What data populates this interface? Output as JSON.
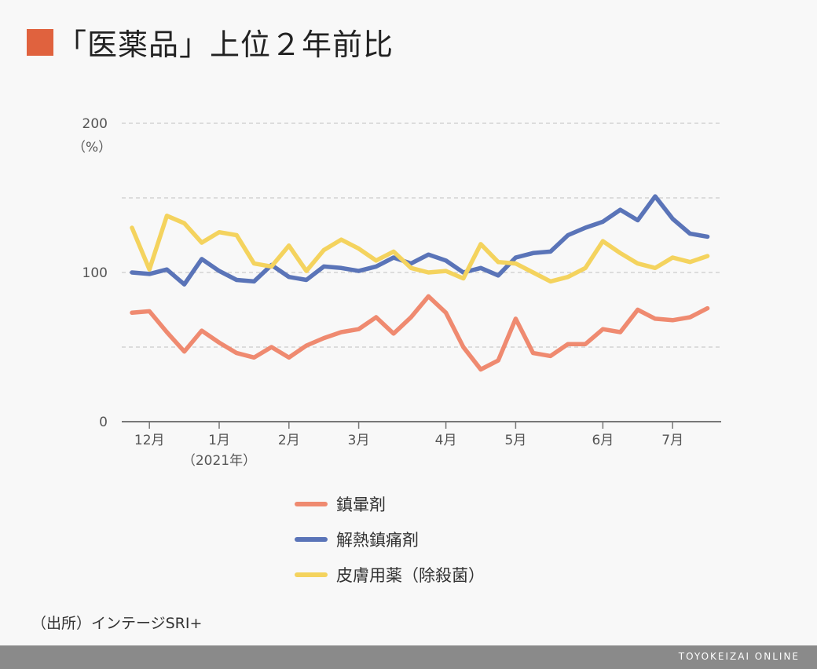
{
  "title": "「医薬品」上位２年前比",
  "colors": {
    "accent": "#e0623e",
    "sedative": "#ef8a70",
    "antipyretic": "#5a74b8",
    "dermatological": "#f4d35e",
    "grid": "#cccccc",
    "axis": "#777777"
  },
  "chart_data": {
    "type": "line",
    "y_unit_label": "（%）",
    "ylim": [
      0,
      200
    ],
    "yticks": [
      0,
      100,
      200
    ],
    "grid": true,
    "x_tick_labels": [
      {
        "label": "12月",
        "week": 1
      },
      {
        "label": "1月",
        "week": 5
      },
      {
        "label": "2月",
        "week": 9
      },
      {
        "label": "3月",
        "week": 13
      },
      {
        "label": "4月",
        "week": 18
      },
      {
        "label": "5月",
        "week": 22
      },
      {
        "label": "6月",
        "week": 27
      },
      {
        "label": "7月",
        "week": 31
      }
    ],
    "x_sublabel": "（2021年）",
    "x_sublabel_under": "1月",
    "series": [
      {
        "name": "鎮暈剤",
        "color": "#ef8a70",
        "values": [
          73,
          74,
          60,
          47,
          61,
          53,
          46,
          43,
          50,
          43,
          51,
          56,
          60,
          62,
          70,
          59,
          70,
          84,
          73,
          50,
          35,
          41,
          69,
          46,
          44,
          52,
          52,
          62,
          60,
          75,
          69,
          68,
          70,
          76
        ]
      },
      {
        "name": "解熱鎮痛剤",
        "color": "#5a74b8",
        "values": [
          100,
          99,
          102,
          92,
          109,
          101,
          95,
          94,
          105,
          97,
          95,
          104,
          103,
          101,
          104,
          110,
          106,
          112,
          108,
          100,
          103,
          98,
          110,
          113,
          114,
          125,
          130,
          134,
          142,
          135,
          151,
          136,
          126,
          124
        ]
      },
      {
        "name": "皮膚用薬（除殺菌）",
        "color": "#f4d35e",
        "values": [
          130,
          102,
          138,
          133,
          120,
          127,
          125,
          106,
          104,
          118,
          101,
          115,
          122,
          116,
          108,
          114,
          103,
          100,
          101,
          96,
          119,
          107,
          106,
          100,
          94,
          97,
          103,
          121,
          113,
          106,
          103,
          110,
          107,
          111
        ]
      }
    ]
  },
  "source": "（出所）インテージSRI+",
  "brand": "TOYOKEIZAI ONLINE"
}
